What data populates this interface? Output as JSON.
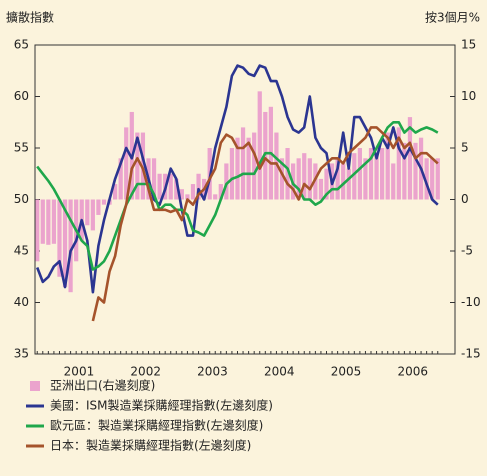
{
  "chart_data": {
    "type": "combo",
    "y_label": "擴散指數",
    "y2_label": "按3個月%",
    "categories": [
      null,
      null,
      null,
      null,
      null,
      null,
      null,
      "2001",
      null,
      null,
      null,
      null,
      null,
      null,
      null,
      null,
      null,
      null,
      null,
      "2002",
      null,
      null,
      null,
      null,
      null,
      null,
      null,
      null,
      null,
      null,
      null,
      "2003",
      null,
      null,
      null,
      null,
      null,
      null,
      null,
      null,
      null,
      null,
      null,
      "2004",
      null,
      null,
      null,
      null,
      null,
      null,
      null,
      null,
      null,
      null,
      null,
      "2005",
      null,
      null,
      null,
      null,
      null,
      null,
      null,
      null,
      null,
      null,
      null,
      "2006",
      null,
      null,
      null,
      null,
      null
    ],
    "ylim": [
      35,
      65
    ],
    "yticks": [
      35,
      40,
      45,
      50,
      55,
      60,
      65
    ],
    "y2lim": [
      -15,
      15
    ],
    "y2ticks": [
      -15,
      -10,
      -5,
      0,
      5,
      10,
      15
    ],
    "series": [
      {
        "name": "亞洲出口(右邊刻度)",
        "type": "bar",
        "axis": "y2",
        "color": "#eba3cd",
        "values": [
          -6,
          -4.3,
          -4.4,
          -4.3,
          -7.5,
          -8.5,
          -9,
          -6,
          -4,
          -2.5,
          -3,
          -1.5,
          -0.5,
          -0.5,
          1.5,
          4,
          7,
          8.5,
          6.5,
          6.5,
          4,
          4,
          2.5,
          2.5,
          2.5,
          2,
          1,
          0.5,
          1.5,
          2.5,
          2,
          5,
          0.5,
          1.5,
          3.5,
          5,
          6,
          7,
          6,
          6.5,
          10.5,
          8.5,
          9,
          6.5,
          4,
          5,
          3.5,
          4,
          4.5,
          4,
          3.5,
          2,
          3,
          3.5,
          4,
          3.5,
          3,
          4.5,
          5,
          4,
          5,
          4.5,
          5,
          6.5,
          3.5,
          7,
          5.5,
          8,
          5.5,
          6,
          4,
          4,
          4
        ]
      },
      {
        "name": "美國：ISM製造業採購經理指數(左邊刻度)",
        "type": "line",
        "color": "#2b3591",
        "values": [
          43.4,
          42,
          42.5,
          43.5,
          44,
          41.5,
          45,
          46,
          48,
          46,
          41,
          45.5,
          48,
          50,
          52,
          53.5,
          55,
          54,
          56,
          54,
          52,
          50,
          49.5,
          51,
          53,
          52,
          49,
          46.5,
          46.5,
          51,
          50,
          52,
          55,
          57,
          59,
          62,
          63,
          62.8,
          62.2,
          62,
          63,
          62.8,
          61.5,
          61.5,
          60,
          58,
          56.8,
          56.5,
          57,
          60,
          56,
          55,
          54.5,
          51.5,
          53,
          56.5,
          53,
          58,
          58,
          57,
          56,
          54,
          56,
          55,
          57,
          55,
          54,
          55,
          54,
          53,
          51.5,
          50,
          49.5
        ]
      },
      {
        "name": "歐元區：製造業採購經理指數(左邊刻度)",
        "type": "line",
        "color": "#1fa74b",
        "values": [
          53.2,
          52.5,
          51.8,
          51,
          50,
          49,
          48,
          47,
          46,
          45.5,
          43.2,
          43.5,
          44,
          45,
          46.5,
          48,
          49.5,
          50.5,
          51.5,
          51.5,
          51.5,
          50.5,
          49,
          49.5,
          49.5,
          49,
          49,
          48.5,
          47,
          46.8,
          46.5,
          47.5,
          48.5,
          50,
          51.5,
          52,
          52.2,
          52.5,
          52.5,
          52.5,
          53.5,
          54.5,
          54.5,
          54,
          53.5,
          53,
          51.5,
          51,
          50,
          50,
          49.5,
          49.8,
          50.5,
          51,
          51,
          51.5,
          52,
          52.5,
          53,
          53.5,
          54,
          55,
          56,
          57,
          57.5,
          57.5,
          56.5,
          57,
          56.5,
          56.8,
          57,
          56.8,
          56.5
        ]
      },
      {
        "name": "日本：製造業採購經理指數(左邊刻度)",
        "type": "line",
        "color": "#a5532b",
        "values": [
          null,
          null,
          null,
          null,
          null,
          null,
          null,
          null,
          null,
          null,
          38.2,
          40.5,
          40,
          43,
          44.5,
          47.5,
          49.5,
          53,
          54,
          53,
          51,
          49,
          49,
          49,
          48.8,
          49,
          48,
          50,
          49.5,
          50.5,
          51,
          52,
          53,
          55.5,
          56.3,
          56,
          55,
          55,
          55.5,
          54.5,
          53,
          54,
          53.5,
          53.5,
          52.5,
          51.5,
          51,
          50,
          51.5,
          51,
          52,
          53,
          53.5,
          54,
          54,
          53.5,
          54.5,
          55,
          55.5,
          56,
          57,
          57,
          56.5,
          56,
          55,
          56,
          55,
          55.5,
          54,
          54.5,
          54.5,
          54,
          53.5
        ]
      }
    ]
  }
}
